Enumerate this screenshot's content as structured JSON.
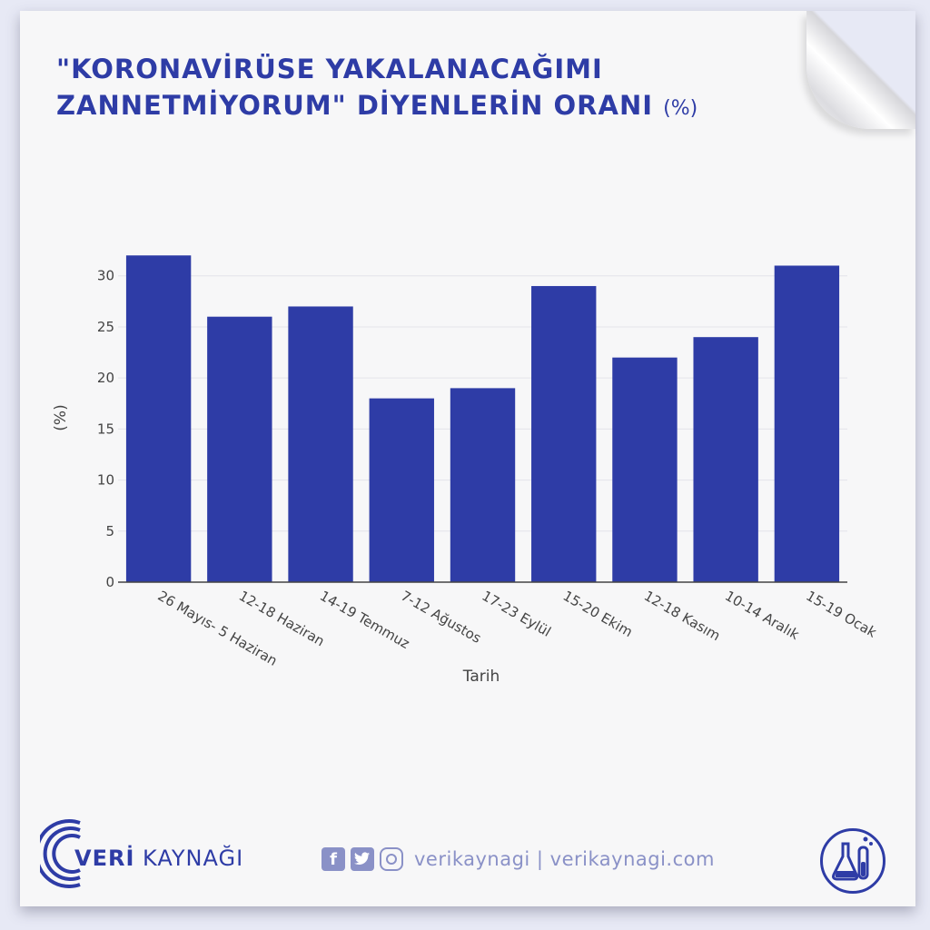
{
  "title": {
    "main": "\"KORONAVİRÜSE YAKALANACAĞIMI ZANNETMİYORUM\" DİYENLERİN ORANI",
    "unit": "(%)"
  },
  "colors": {
    "bar": "#2e3ca6",
    "title": "#2e3ca6",
    "grid": "#e4e4ea"
  },
  "chart_data": {
    "type": "bar",
    "categories": [
      "26 Mayıs- 5 Haziran",
      "12-18 Haziran",
      "14-19 Temmuz",
      "7-12 Ağustos",
      "17-23 Eylül",
      "15-20 Ekim",
      "12-18 Kasım",
      "10-14 Aralık",
      "15-19 Ocak"
    ],
    "values": [
      32,
      26,
      27,
      18,
      19,
      29,
      22,
      24,
      31
    ],
    "xlabel": "Tarih",
    "ylabel": "(%)",
    "ylim": [
      0,
      33
    ],
    "yticks": [
      0,
      5,
      10,
      15,
      20,
      25,
      30
    ],
    "grid": true
  },
  "footer": {
    "brand_bold": "VERİ",
    "brand_rest": " KAYNAĞI",
    "social_text": "verikaynagi | verikaynagi.com",
    "icons": [
      "facebook-icon",
      "twitter-icon",
      "instagram-icon",
      "lab-flask-icon"
    ]
  }
}
